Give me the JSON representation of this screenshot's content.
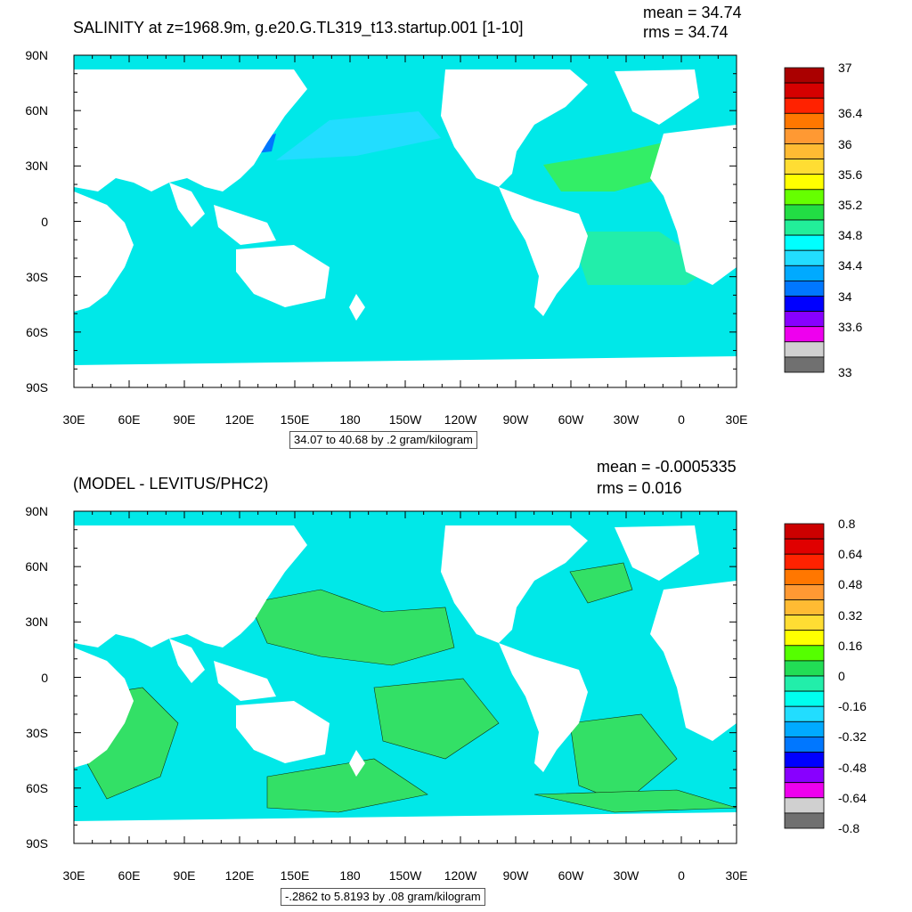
{
  "panels": [
    {
      "title": "SALINITY at z=1968.9m, g.e20.G.TL319_t13.startup.001 [1-10]",
      "mean_text": "mean = 34.74",
      "rms_text": "rms = 34.74",
      "range_text": "34.07 to 40.68 by .2 gram/kilogram",
      "ocean_color": "#00e8e8",
      "colorbar": {
        "colors": [
          "#aa0000",
          "#d50000",
          "#ff2200",
          "#ff7700",
          "#ff9933",
          "#ffbb33",
          "#ffdd33",
          "#ffff00",
          "#66ff00",
          "#22dd44",
          "#22ee99",
          "#00ffff",
          "#22ddff",
          "#00aaff",
          "#0077ff",
          "#0000ff",
          "#8800ff",
          "#ee00ee",
          "#d0d0d0",
          "#707070"
        ],
        "labels": [
          {
            "text": "37",
            "at": 0
          },
          {
            "text": "36.4",
            "at": 3
          },
          {
            "text": "36",
            "at": 5
          },
          {
            "text": "35.6",
            "at": 7
          },
          {
            "text": "35.2",
            "at": 9
          },
          {
            "text": "34.8",
            "at": 11
          },
          {
            "text": "34.4",
            "at": 13
          },
          {
            "text": "34",
            "at": 15
          },
          {
            "text": "33.6",
            "at": 17
          },
          {
            "text": "33",
            "at": 20
          }
        ]
      }
    },
    {
      "title": "(MODEL - LEVITUS/PHC2)",
      "mean_text": "mean = -0.0005335",
      "rms_text": "rms = 0.016",
      "range_text": "-.2862 to 5.8193 by .08 gram/kilogram",
      "ocean_color": "#00e8e8",
      "colorbar": {
        "colors": [
          "#cc0000",
          "#e00000",
          "#ff2200",
          "#ff7700",
          "#ff9933",
          "#ffbb33",
          "#ffdd33",
          "#ffff00",
          "#55ff00",
          "#22dd55",
          "#22eeaa",
          "#00ffee",
          "#22ddff",
          "#00aaff",
          "#0077ff",
          "#0000ff",
          "#8800ff",
          "#ee00ee",
          "#d0d0d0",
          "#707070"
        ],
        "labels": [
          {
            "text": "0.8",
            "at": 0
          },
          {
            "text": "0.64",
            "at": 2
          },
          {
            "text": "0.48",
            "at": 4
          },
          {
            "text": "0.32",
            "at": 6
          },
          {
            "text": "0.16",
            "at": 8
          },
          {
            "text": "0",
            "at": 10
          },
          {
            "text": "-0.16",
            "at": 12
          },
          {
            "text": "-0.32",
            "at": 14
          },
          {
            "text": "-0.48",
            "at": 16
          },
          {
            "text": "-0.64",
            "at": 18
          },
          {
            "text": "-0.8",
            "at": 20
          }
        ]
      }
    }
  ],
  "axes": {
    "lat_labels": [
      "90N",
      "60N",
      "30N",
      "0",
      "30S",
      "60S",
      "90S"
    ],
    "lon_labels": [
      "30E",
      "60E",
      "90E",
      "120E",
      "150E",
      "180",
      "150W",
      "120W",
      "90W",
      "60W",
      "30W",
      "0",
      "30E"
    ]
  }
}
